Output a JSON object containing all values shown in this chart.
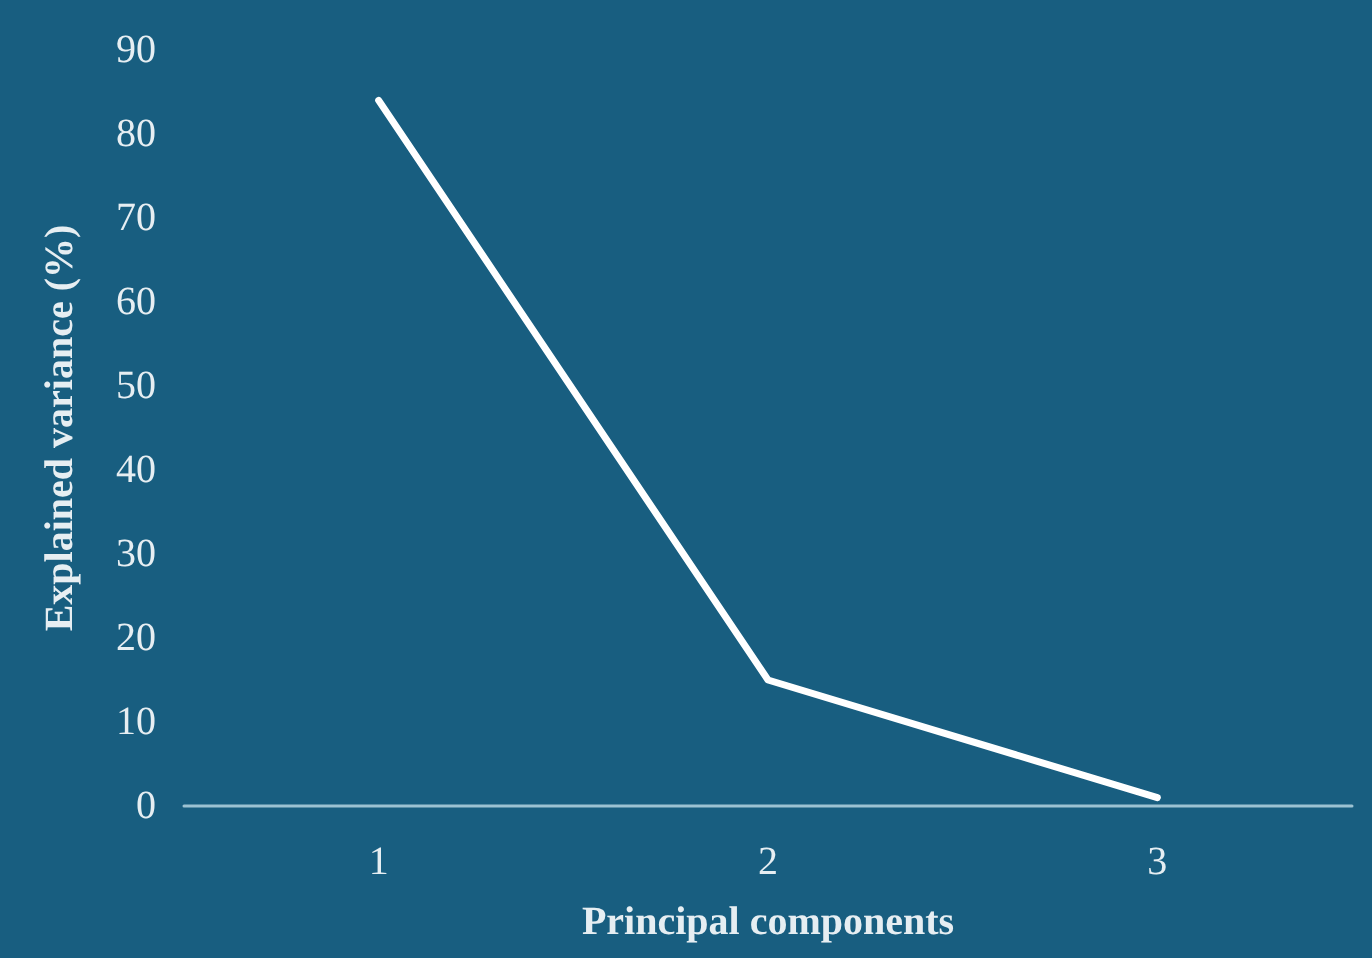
{
  "chart_data": {
    "type": "line",
    "xlabel": "Principal components",
    "ylabel": "Explained variance (%)",
    "categories": [
      "1",
      "2",
      "3"
    ],
    "series": [
      {
        "color": "#ffffff",
        "values": [
          84,
          15,
          1
        ]
      }
    ],
    "ylim": [
      0,
      90
    ],
    "yticks": [
      0,
      10,
      20,
      30,
      40,
      50,
      60,
      70,
      80,
      90
    ],
    "grid": false,
    "marker": "none",
    "line_style": "solid"
  }
}
